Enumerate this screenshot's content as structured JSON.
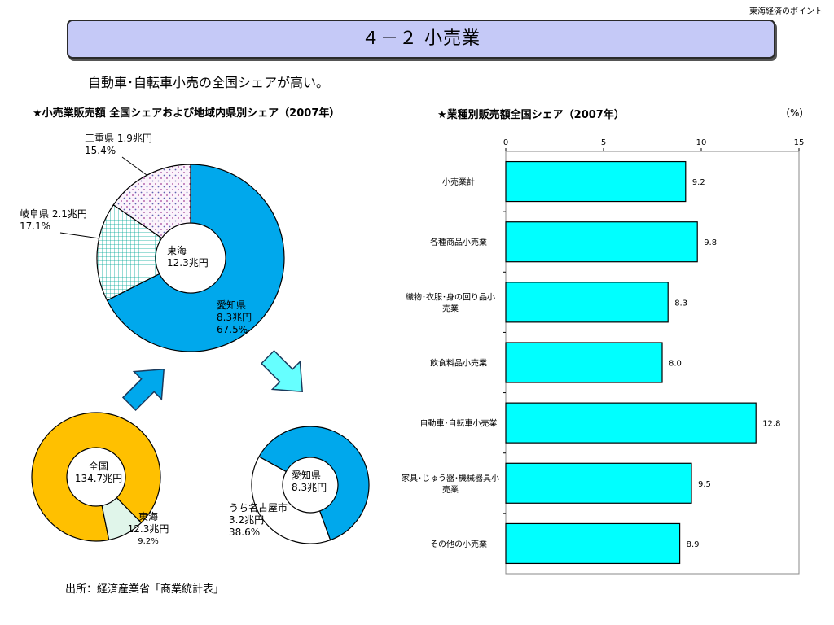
{
  "corner_label": "東海経済のポイント",
  "title": "４－２ 小売業",
  "subtitle": "自動車･自転車小売の全国シェアが高い。",
  "left_heading": "★小売業販売額 全国シェアおよび地域内県別シェア（2007年）",
  "right_heading": "★業種別販売額全国シェア（2007年）",
  "unit_label": "（%）",
  "source": "出所：経済産業省「商業統計表」",
  "colors": {
    "aichi": "#00a8ec",
    "gifu": "#7fe0d0",
    "mie": "#f4e6f4",
    "national": "#ffc000",
    "tokai_small": "#e0f5ea",
    "nagoya_rest": "#ffffff",
    "bars": "#00ffff",
    "arrow_up": "#00a8ec",
    "arrow_down": "#66ffff"
  },
  "donut_main": {
    "center_line1": "東海",
    "center_line2": "12.3兆円",
    "aichi": {
      "line1": "愛知県",
      "line2": "8.3兆円",
      "line3": "67.5%"
    },
    "gifu": {
      "line1": "岐阜県 2.1兆円",
      "line2": "17.1%"
    },
    "mie": {
      "line1": "三重県 1.9兆円",
      "line2": "15.4%"
    }
  },
  "donut_national": {
    "center_line1": "全国",
    "center_line2": "134.7兆円",
    "tokai": {
      "line1": "東海",
      "line2": "12.3兆円",
      "line3": "9.2%"
    }
  },
  "donut_aichi": {
    "center_line1": "愛知県",
    "center_line2": "8.3兆円",
    "nagoya": {
      "line1": "うち名古屋市",
      "line2": "3.2兆円",
      "line3": "38.6%"
    }
  },
  "chart_data": [
    {
      "type": "pie",
      "variant": "donut",
      "center": "東海 12.3兆円",
      "slices": [
        {
          "label": "愛知県",
          "value_trillion_yen": 8.3,
          "share_pct": 67.5
        },
        {
          "label": "岐阜県",
          "value_trillion_yen": 2.1,
          "share_pct": 17.1
        },
        {
          "label": "三重県",
          "value_trillion_yen": 1.9,
          "share_pct": 15.4
        }
      ]
    },
    {
      "type": "pie",
      "variant": "donut",
      "center": "全国 134.7兆円",
      "slices": [
        {
          "label": "東海",
          "value_trillion_yen": 12.3,
          "share_pct": 9.2
        },
        {
          "label": "",
          "share_pct": 90.8
        }
      ]
    },
    {
      "type": "pie",
      "variant": "donut",
      "center": "愛知県 8.3兆円",
      "slices": [
        {
          "label": "うち名古屋市",
          "value_trillion_yen": 3.2,
          "share_pct": 38.6
        },
        {
          "label": "",
          "share_pct": 61.4
        }
      ]
    },
    {
      "type": "bar",
      "orientation": "horizontal",
      "categories": [
        "小売業計",
        "各種商品小売業",
        "織物･衣服･身の回り品小売業",
        "飲食料品小売業",
        "自動車･自転車小売業",
        "家具･じゅう器･機械器具小売業",
        "その他の小売業"
      ],
      "category_lines": [
        [
          "小売業計"
        ],
        [
          "各種商品小売業"
        ],
        [
          "織物･衣服･身の回り品小",
          "売業"
        ],
        [
          "飲食料品小売業"
        ],
        [
          "自動車･自転車小売業"
        ],
        [
          "家具･じゅう器･機械器具小",
          "売業"
        ],
        [
          "その他の小売業"
        ]
      ],
      "values": [
        9.2,
        9.8,
        8.3,
        8.0,
        12.8,
        9.5,
        8.9
      ],
      "value_labels": [
        "9.2",
        "9.8",
        "8.3",
        "8.0",
        "12.8",
        "9.5",
        "8.9"
      ],
      "xlim": [
        0,
        15
      ],
      "xticks": [
        0,
        5,
        10,
        15
      ],
      "xtick_labels": [
        "0",
        "5",
        "10",
        "15"
      ],
      "unit": "（%）",
      "grid": false
    }
  ]
}
